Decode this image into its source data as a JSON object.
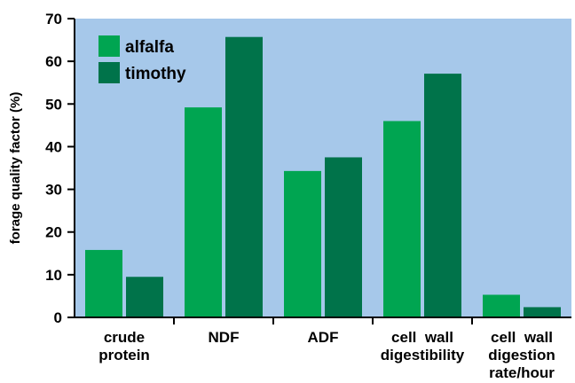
{
  "chart_data": {
    "type": "bar",
    "title": "",
    "xlabel": "",
    "ylabel": "forage quality factor (%)",
    "ylim": [
      0,
      70
    ],
    "yticks": [
      0,
      10,
      20,
      30,
      40,
      50,
      60,
      70
    ],
    "grid": false,
    "legend_position": "top-left",
    "categories": [
      [
        "crude",
        "protein"
      ],
      [
        "NDF"
      ],
      [
        "ADF"
      ],
      [
        "cell  wall",
        "digestibility"
      ],
      [
        "cell  wall",
        "digestion",
        "rate/hour"
      ]
    ],
    "series": [
      {
        "name": "alfalfa",
        "color": "#00a551",
        "values": [
          15.8,
          49.2,
          34.3,
          46.0,
          5.3
        ]
      },
      {
        "name": "timothy",
        "color": "#00734a",
        "values": [
          9.5,
          65.7,
          37.5,
          57.1,
          2.4
        ]
      }
    ],
    "plot_background": "#a6c8ea"
  }
}
